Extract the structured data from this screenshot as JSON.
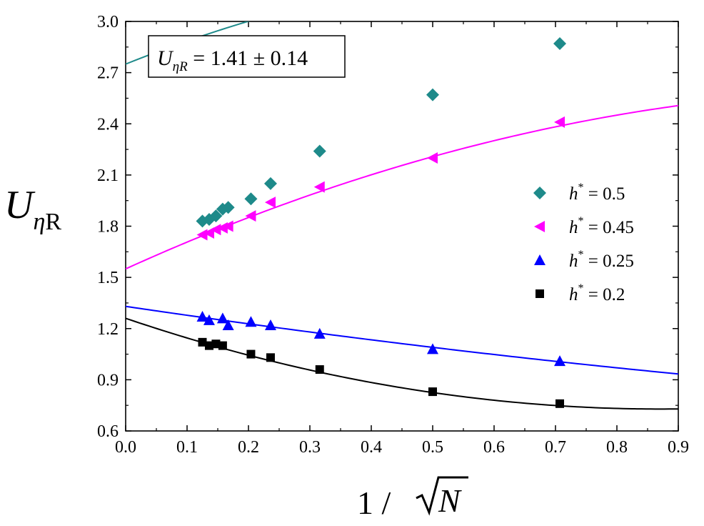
{
  "chart_data": {
    "type": "scatter",
    "title": "",
    "xlabel": {
      "prefix": "1 / ",
      "variable": "N"
    },
    "ylabel": {
      "main": "U",
      "subscript_greek": "η",
      "subscript_roman": "R"
    },
    "xlim": [
      0.0,
      0.9
    ],
    "ylim": [
      0.6,
      3.0
    ],
    "x_ticks": [
      "0.0",
      "0.1",
      "0.2",
      "0.3",
      "0.4",
      "0.5",
      "0.6",
      "0.7",
      "0.8",
      "0.9"
    ],
    "y_ticks": [
      "0.6",
      "0.9",
      "1.2",
      "1.5",
      "1.8",
      "2.1",
      "2.4",
      "2.7",
      "3.0"
    ],
    "grid": false,
    "legend_position": "right",
    "annotation": {
      "lhs_main": "U",
      "lhs_sub": "ηR",
      "rhs": " = 1.41 ± 0.14"
    },
    "series": [
      {
        "name": "h* = 0.5",
        "legend": {
          "var": "h",
          "sup": "*",
          "value": " = 0.5"
        },
        "color": "#1e8a8a",
        "marker": "diamond",
        "points": [
          [
            0.125,
            1.83
          ],
          [
            0.136,
            1.84
          ],
          [
            0.147,
            1.86
          ],
          [
            0.158,
            1.9
          ],
          [
            0.167,
            1.91
          ],
          [
            0.204,
            1.96
          ],
          [
            0.236,
            2.05
          ],
          [
            0.316,
            2.24
          ],
          [
            0.5,
            2.57
          ],
          [
            0.707,
            2.87
          ]
        ],
        "fit": [
          2.75,
          1.44,
          -0.92
        ]
      },
      {
        "name": "h* = 0.45",
        "legend": {
          "var": "h",
          "sup": "*",
          "value": " = 0.45"
        },
        "color": "#ff00ff",
        "marker": "triangle-left",
        "points": [
          [
            0.125,
            1.75
          ],
          [
            0.136,
            1.76
          ],
          [
            0.147,
            1.78
          ],
          [
            0.158,
            1.79
          ],
          [
            0.167,
            1.8
          ],
          [
            0.204,
            1.86
          ],
          [
            0.236,
            1.94
          ],
          [
            0.316,
            2.03
          ],
          [
            0.5,
            2.2
          ],
          [
            0.707,
            2.41
          ]
        ],
        "fit": [
          1.55,
          1.63,
          -0.63
        ]
      },
      {
        "name": "h* = 0.25",
        "legend": {
          "var": "h",
          "sup": "*",
          "value": " = 0.25"
        },
        "color": "#0000ff",
        "marker": "triangle-up",
        "points": [
          [
            0.125,
            1.27
          ],
          [
            0.136,
            1.25
          ],
          [
            0.158,
            1.26
          ],
          [
            0.167,
            1.22
          ],
          [
            0.204,
            1.24
          ],
          [
            0.236,
            1.22
          ],
          [
            0.316,
            1.17
          ],
          [
            0.5,
            1.08
          ],
          [
            0.707,
            1.01
          ]
        ],
        "fit": [
          1.33,
          -0.53,
          0.1
        ]
      },
      {
        "name": "h* = 0.2",
        "legend": {
          "var": "h",
          "sup": "*",
          "value": " = 0.2"
        },
        "color": "#000000",
        "marker": "square",
        "points": [
          [
            0.125,
            1.12
          ],
          [
            0.136,
            1.1
          ],
          [
            0.147,
            1.11
          ],
          [
            0.158,
            1.1
          ],
          [
            0.204,
            1.05
          ],
          [
            0.236,
            1.03
          ],
          [
            0.316,
            0.96
          ],
          [
            0.5,
            0.83
          ],
          [
            0.707,
            0.76
          ]
        ],
        "fit": [
          1.26,
          -1.22,
          0.7
        ]
      }
    ]
  }
}
